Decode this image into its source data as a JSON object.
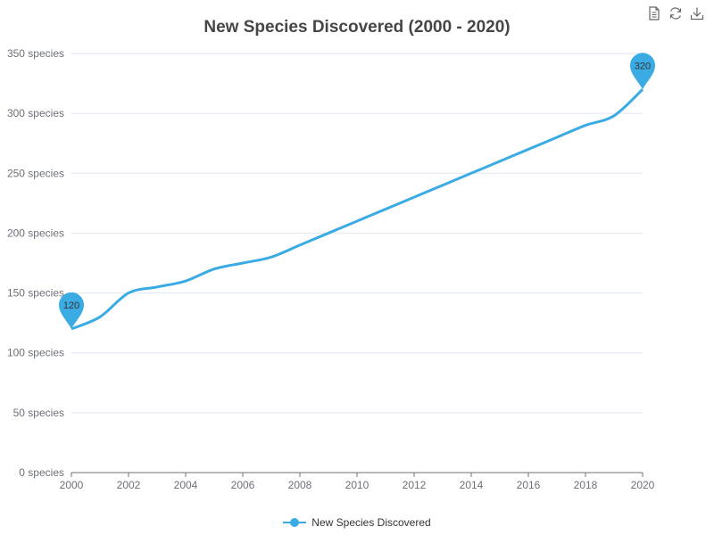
{
  "toolbox": {
    "icons": [
      "data-view-icon",
      "restore-icon",
      "save-as-image-icon"
    ]
  },
  "colors": {
    "series": "#3aabe3",
    "axis": "#6e7079",
    "grid": "#e0e6f1",
    "title": "#464646"
  },
  "chart_data": {
    "type": "line",
    "title": "New Species Discovered (2000 - 2020)",
    "xlabel": "",
    "ylabel": "",
    "x": [
      2000,
      2001,
      2002,
      2003,
      2004,
      2005,
      2006,
      2007,
      2008,
      2009,
      2010,
      2011,
      2012,
      2013,
      2014,
      2015,
      2016,
      2017,
      2018,
      2019,
      2020
    ],
    "xlim": [
      2000,
      2020
    ],
    "x_ticks": [
      2000,
      2002,
      2004,
      2006,
      2008,
      2010,
      2012,
      2014,
      2016,
      2018,
      2020
    ],
    "x_tick_labels": [
      "2000",
      "2002",
      "2004",
      "2006",
      "2008",
      "2010",
      "2012",
      "2014",
      "2016",
      "2018",
      "2020"
    ],
    "ylim": [
      0,
      350
    ],
    "y_ticks": [
      0,
      50,
      100,
      150,
      200,
      250,
      300,
      350
    ],
    "y_tick_labels": [
      "0 species",
      "50 species",
      "100 species",
      "150 species",
      "200 species",
      "250 species",
      "300 species",
      "350 species"
    ],
    "series": [
      {
        "name": "New Species Discovered",
        "values": [
          120,
          130,
          150,
          155,
          160,
          170,
          175,
          180,
          190,
          200,
          210,
          220,
          230,
          240,
          250,
          260,
          270,
          280,
          290,
          298,
          320
        ]
      }
    ],
    "markers": [
      {
        "label": "120",
        "x": 2000,
        "value": 120
      },
      {
        "label": "320",
        "x": 2020,
        "value": 320
      }
    ],
    "legend": "bottom-center",
    "grid": true
  }
}
